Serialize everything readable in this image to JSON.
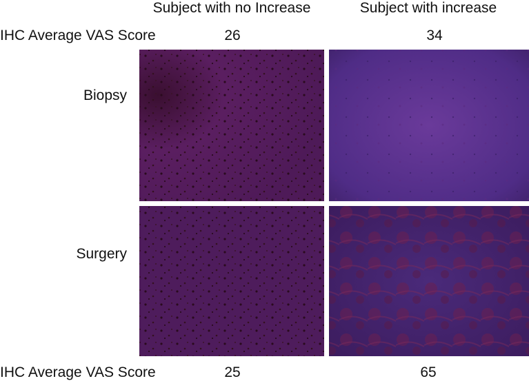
{
  "header": {
    "columns": [
      "Subject with no Increase",
      "Subject with increase"
    ]
  },
  "top_scores": {
    "label": "IHC Average VAS Score",
    "values": [
      26,
      34
    ]
  },
  "rows": [
    {
      "label": "Biopsy"
    },
    {
      "label": "Surgery"
    }
  ],
  "bottom_scores": {
    "label": "IHC Average VAS Score",
    "values": [
      25,
      65
    ]
  }
}
